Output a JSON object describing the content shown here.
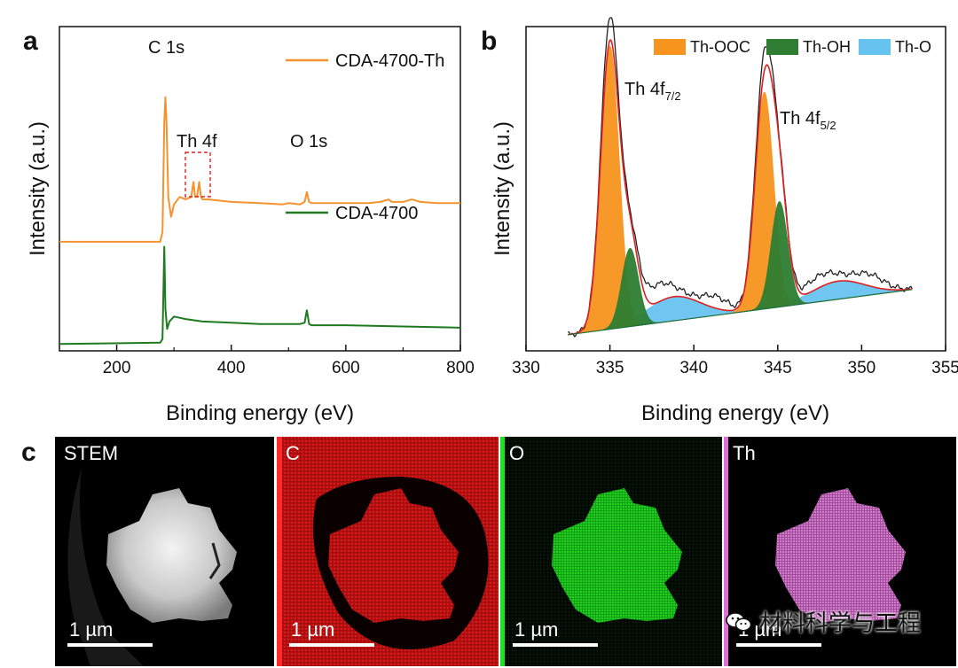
{
  "panels": {
    "a": "a",
    "b": "b",
    "c": "c"
  },
  "chart_data": [
    {
      "type": "line",
      "panel": "a",
      "xlabel": "Binding energy (eV)",
      "ylabel": "Intensity (a.u.)",
      "xlim": [
        100,
        800
      ],
      "xticks": [
        "200",
        "400",
        "600",
        "800"
      ],
      "legend": [
        "CDA-4700-Th",
        "CDA-4700"
      ],
      "annotations": [
        "C 1s",
        "Th 4f",
        "O 1s"
      ],
      "series": [
        {
          "name": "CDA-4700-Th",
          "color": "#f5922e",
          "x": [
            100,
            270,
            276,
            280,
            283,
            285,
            287,
            290,
            295,
            300,
            310,
            320,
            330,
            334,
            337,
            340,
            344,
            347,
            350,
            360,
            380,
            400,
            450,
            490,
            500,
            520,
            528,
            532,
            536,
            540,
            560,
            600,
            640,
            660,
            675,
            680,
            700,
            715,
            730,
            760,
            800
          ],
          "y": [
            0.42,
            0.42,
            0.42,
            0.46,
            0.9,
            1.0,
            0.9,
            0.6,
            0.52,
            0.57,
            0.6,
            0.59,
            0.6,
            0.66,
            0.6,
            0.6,
            0.66,
            0.6,
            0.59,
            0.59,
            0.585,
            0.58,
            0.575,
            0.57,
            0.575,
            0.57,
            0.58,
            0.62,
            0.58,
            0.575,
            0.575,
            0.575,
            0.575,
            0.58,
            0.59,
            0.58,
            0.58,
            0.59,
            0.58,
            0.575,
            0.575
          ]
        },
        {
          "name": "CDA-4700",
          "color": "#1e7a1e",
          "x": [
            100,
            276,
            280,
            283,
            285,
            288,
            292,
            300,
            310,
            320,
            350,
            400,
            450,
            500,
            520,
            528,
            532,
            536,
            540,
            600,
            700,
            800
          ],
          "y": [
            0.01,
            0.015,
            0.03,
            0.4,
            0.15,
            0.07,
            0.1,
            0.12,
            0.115,
            0.11,
            0.1,
            0.095,
            0.09,
            0.09,
            0.09,
            0.095,
            0.145,
            0.09,
            0.085,
            0.085,
            0.08,
            0.075
          ]
        }
      ]
    },
    {
      "type": "area",
      "panel": "b",
      "xlabel": "Binding energy (eV)",
      "ylabel": "Intensity (a.u.)",
      "xlim": [
        330,
        355
      ],
      "xticks": [
        "330",
        "335",
        "340",
        "345",
        "350",
        "355"
      ],
      "legend": [
        "Th-OOC",
        "Th-OH",
        "Th-O"
      ],
      "annotations": {
        "peak1_main": "Th 4f",
        "peak1_sub": "7/2",
        "peak2_main": "Th 4f",
        "peak2_sub": "5/2"
      },
      "colors": {
        "Th-OOC": "#f7941d",
        "Th-OH": "#2e7d32",
        "Th-O": "#66c3f0",
        "envelope": "#e02020",
        "raw": "#222222"
      },
      "baseline": {
        "x": [
          332.5,
          353
        ],
        "y": [
          0.03,
          0.18
        ]
      },
      "components": [
        {
          "name": "Th-OOC",
          "center": 335.0,
          "sigma": 0.55,
          "height": 0.94
        },
        {
          "name": "Th-OOC",
          "center": 344.2,
          "sigma": 0.55,
          "height": 0.72
        },
        {
          "name": "Th-OH",
          "center": 336.2,
          "sigma": 0.5,
          "height": 0.26
        },
        {
          "name": "Th-OH",
          "center": 345.1,
          "sigma": 0.5,
          "height": 0.35
        },
        {
          "name": "Th-O",
          "center": 338.8,
          "sigma": 1.6,
          "height": 0.08
        },
        {
          "name": "Th-O",
          "center": 348.6,
          "sigma": 1.6,
          "height": 0.06
        }
      ],
      "raw_extra": [
        {
          "center": 335.0,
          "sigma": 0.5,
          "height": 0.08
        },
        {
          "center": 344.2,
          "sigma": 0.5,
          "height": 0.07
        },
        {
          "center": 337.8,
          "sigma": 1.0,
          "height": 0.06
        },
        {
          "center": 341.3,
          "sigma": 0.8,
          "height": 0.04
        },
        {
          "center": 347.5,
          "sigma": 1.0,
          "height": 0.04
        },
        {
          "center": 350.5,
          "sigma": 0.9,
          "height": 0.04
        }
      ]
    }
  ],
  "micrographs": [
    {
      "label": "STEM",
      "scale": "1 µm",
      "tint": "#ffffff"
    },
    {
      "label": "C",
      "scale": "1 µm",
      "tint": "#e01010"
    },
    {
      "label": "O",
      "scale": "1 µm",
      "tint": "#18d018"
    },
    {
      "label": "Th",
      "scale": "1 µm",
      "tint": "#e070d8"
    }
  ],
  "watermark": "材料科学与工程"
}
